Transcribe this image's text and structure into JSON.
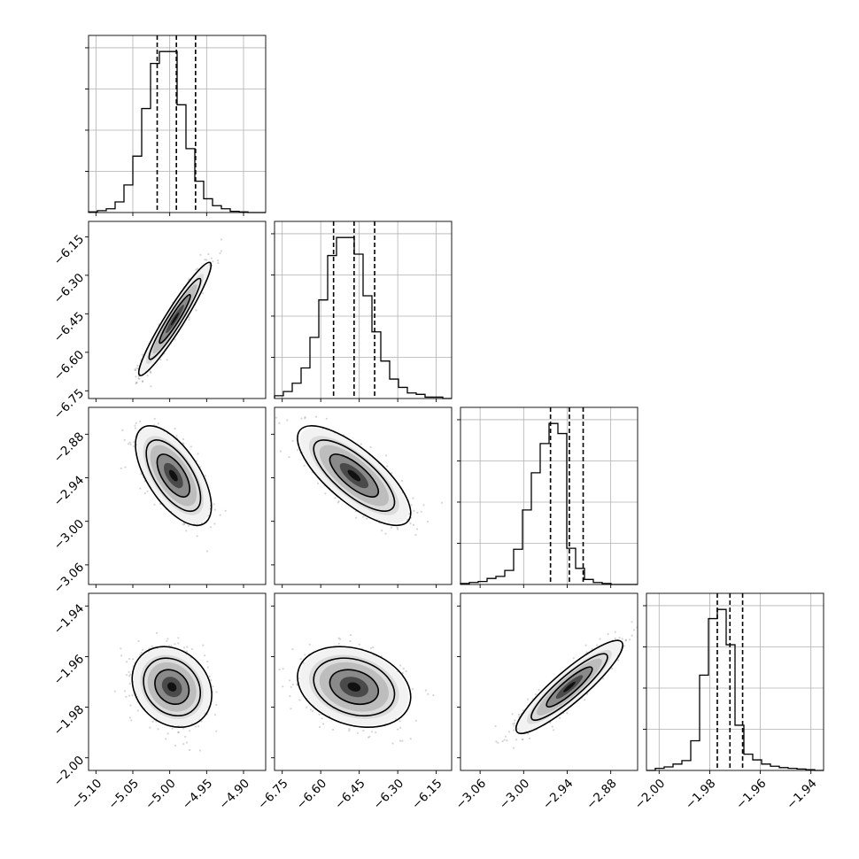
{
  "chart_data": {
    "type": "corner",
    "title": "",
    "params": [
      {
        "range": [
          -5.11,
          -4.87
        ],
        "ticks": [
          -5.1,
          -5.05,
          -5.0,
          -4.95,
          -4.9
        ],
        "tick_labels": [
          "−5.10",
          "−5.05",
          "−5.00",
          "−4.95",
          "−4.90"
        ],
        "quantiles": [
          -5.017,
          -4.991,
          -4.965
        ],
        "hist_edges_start": -5.11,
        "hist_bin_width": 0.012,
        "hist_counts": [
          1,
          3,
          6,
          17,
          44,
          90,
          166,
          238,
          257,
          257,
          172,
          102,
          50,
          22,
          11,
          6,
          2,
          1,
          0,
          0
        ]
      },
      {
        "range": [
          -6.78,
          -6.09
        ],
        "ticks": [
          -6.75,
          -6.6,
          -6.45,
          -6.3,
          -6.15
        ],
        "tick_labels": [
          "−6.75",
          "−6.60",
          "−6.45",
          "−6.30",
          "−6.15"
        ],
        "quantiles": [
          -6.55,
          -6.47,
          -6.39
        ],
        "hist_edges_start": -6.78,
        "hist_bin_width": 0.0345,
        "hist_counts": [
          2,
          5,
          11,
          22,
          44,
          71,
          103,
          116,
          116,
          104,
          74,
          48,
          27,
          14,
          8,
          4,
          3,
          1,
          1,
          0
        ]
      },
      {
        "range": [
          -3.087,
          -2.843
        ],
        "ticks": [
          -3.06,
          -3.0,
          -2.94,
          -2.88
        ],
        "tick_labels": [
          "−3.06",
          "−3.00",
          "−2.94",
          "−2.88"
        ],
        "quantiles": [
          -2.963,
          -2.937,
          -2.918
        ],
        "hist_edges_start": -3.087,
        "hist_bin_width": 0.0122,
        "hist_counts": [
          1,
          2,
          3,
          6,
          8,
          14,
          35,
          74,
          111,
          140,
          160,
          150,
          36,
          16,
          5,
          2,
          1,
          0,
          0,
          0
        ]
      },
      {
        "range": [
          -2.005,
          -1.935
        ],
        "ticks": [
          -2.0,
          -1.98,
          -1.96,
          -1.94
        ],
        "tick_labels": [
          "−2.00",
          "−1.98",
          "−1.96",
          "−1.94"
        ],
        "quantiles": [
          -1.977,
          -1.972,
          -1.967
        ],
        "hist_edges_start": -2.005,
        "hist_bin_width": 0.0035,
        "hist_counts": [
          0,
          3,
          5,
          9,
          14,
          42,
          135,
          215,
          228,
          178,
          64,
          23,
          15,
          9,
          6,
          4,
          3,
          2,
          1,
          0
        ]
      }
    ],
    "pairs": [
      {
        "x": 0,
        "y": 1,
        "mean": [
          -4.993,
          -6.47
        ],
        "sd": [
          0.02,
          0.09
        ],
        "rho": 0.95,
        "contours": [
          "0.39",
          "0.86",
          "0.99"
        ]
      },
      {
        "x": 0,
        "y": 2,
        "mean": [
          -4.995,
          -2.937
        ],
        "sd": [
          0.021,
          0.028
        ],
        "rho": -0.62
      },
      {
        "x": 1,
        "y": 2,
        "mean": [
          -6.47,
          -2.937
        ],
        "sd": [
          0.09,
          0.028
        ],
        "rho": -0.75
      },
      {
        "x": 0,
        "y": 3,
        "mean": [
          -4.997,
          -1.972
        ],
        "sd": [
          0.022,
          0.0065
        ],
        "rho": -0.2
      },
      {
        "x": 1,
        "y": 3,
        "mean": [
          -6.47,
          -1.972
        ],
        "sd": [
          0.09,
          0.0065
        ],
        "rho": -0.25
      },
      {
        "x": 2,
        "y": 3,
        "mean": [
          -2.937,
          -1.972
        ],
        "sd": [
          0.03,
          0.0075
        ],
        "rho": 0.9
      }
    ],
    "grid": true,
    "legend": "none"
  }
}
